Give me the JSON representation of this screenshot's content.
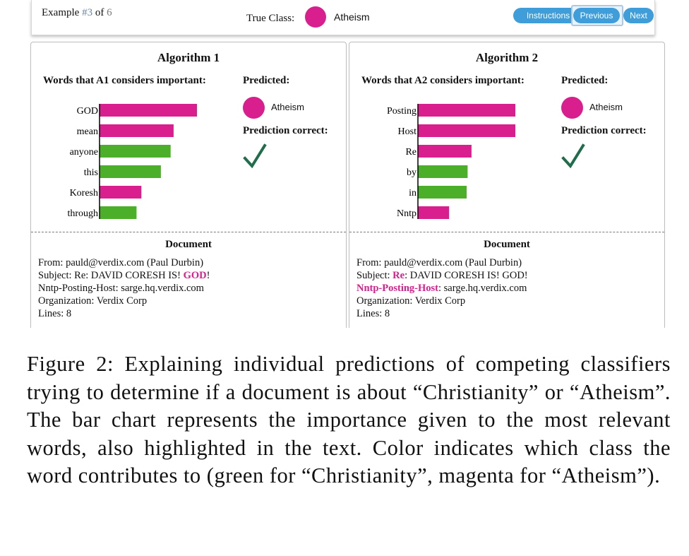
{
  "toolbar": {
    "example_prefix": "Example ",
    "example_current": "#3",
    "example_of": " of ",
    "example_total": "6",
    "true_class_label": "True Class:",
    "true_class_value": "Atheism",
    "instructions_label": "Instructions",
    "previous_label": "Previous",
    "next_label": "Next"
  },
  "colors": {
    "atheism": "#d91f8e",
    "christianity": "#4caf2a",
    "button": "#3f9ed9",
    "check": "#1f6d4a"
  },
  "panels": [
    {
      "title": "Algorithm 1",
      "words_heading": "Words that A1 considers important:",
      "predicted_heading": "Predicted:",
      "predicted_value": "Atheism",
      "correct_heading": "Prediction correct:",
      "check_icon": "checkmark-icon",
      "words": [
        {
          "word": "GOD",
          "weight": 1.0,
          "class": "atheism"
        },
        {
          "word": "mean",
          "weight": 0.76,
          "class": "atheism"
        },
        {
          "word": "anyone",
          "weight": 0.73,
          "class": "christianity"
        },
        {
          "word": "this",
          "weight": 0.63,
          "class": "christianity"
        },
        {
          "word": "Koresh",
          "weight": 0.43,
          "class": "atheism"
        },
        {
          "word": "through",
          "weight": 0.38,
          "class": "christianity"
        }
      ],
      "document_heading": "Document",
      "document": {
        "line1": "From: pauld@verdix.com (Paul Durbin)",
        "line2_a": "Subject: Re: DAVID CORESH IS! ",
        "line2_b": "GOD",
        "line2_c": "!",
        "line3_a": "",
        "line3_b": "Nntp-Posting-Host: sarge.hq.verdix.com",
        "line4": "Organization: Verdix Corp",
        "line5": "Lines: 8"
      }
    },
    {
      "title": "Algorithm 2",
      "words_heading": "Words that A2 considers important:",
      "predicted_heading": "Predicted:",
      "predicted_value": "Atheism",
      "correct_heading": "Prediction correct:",
      "check_icon": "checkmark-icon",
      "words": [
        {
          "word": "Posting",
          "weight": 1.0,
          "class": "atheism"
        },
        {
          "word": "Host",
          "weight": 1.0,
          "class": "atheism"
        },
        {
          "word": "Re",
          "weight": 0.55,
          "class": "atheism"
        },
        {
          "word": "by",
          "weight": 0.51,
          "class": "christianity"
        },
        {
          "word": "in",
          "weight": 0.5,
          "class": "christianity"
        },
        {
          "word": "Nntp",
          "weight": 0.32,
          "class": "atheism"
        }
      ],
      "document_heading": "Document",
      "document": {
        "line1": "From: pauld@verdix.com (Paul Durbin)",
        "line2_a": "Subject: ",
        "line2_b": "Re",
        "line2_c": ": DAVID CORESH IS! GOD!",
        "line3_a": "Nntp-Posting-Host",
        "line3_b": ": sarge.hq.verdix.com",
        "line4": "Organization: Verdix Corp",
        "line5": "Lines: 8"
      }
    }
  ],
  "caption": "Figure 2: Explaining individual predictions of competing classifiers trying to determine if a document is about “Christianity” or “Atheism”. The bar chart represents the importance given to the most relevant words, also highlighted in the text. Color indicates which class the word contributes to (green for “Christianity”, magenta for “Atheism”)."
}
